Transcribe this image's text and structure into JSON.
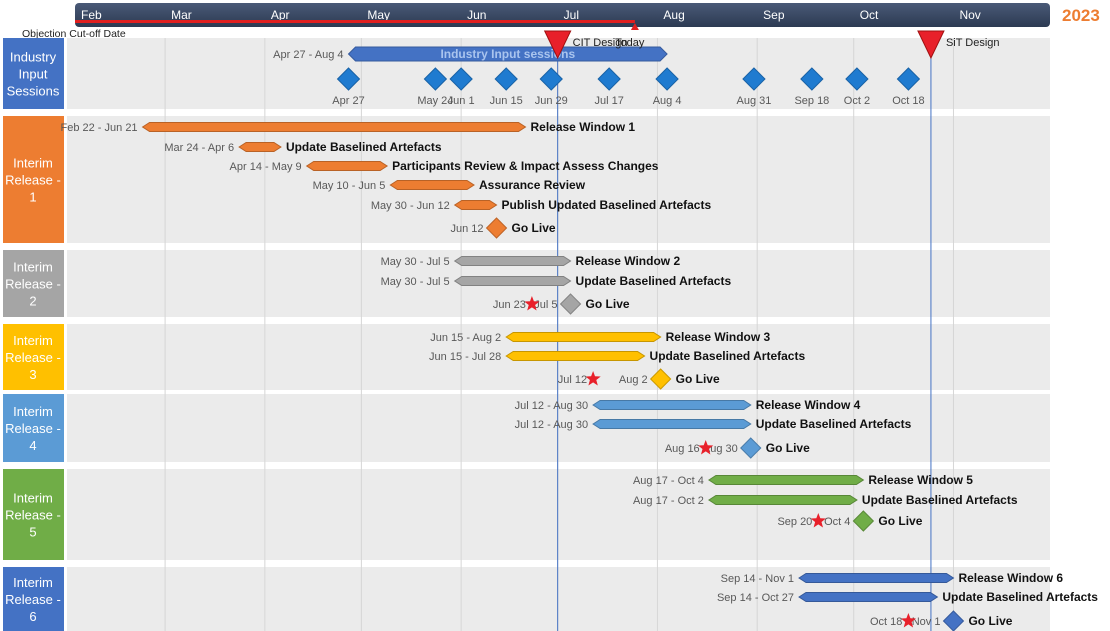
{
  "chart_data": {
    "type": "gantt",
    "year": "2023",
    "months": [
      "Feb",
      "Mar",
      "Apr",
      "May",
      "Jun",
      "Jul",
      "Aug",
      "Sep",
      "Oct",
      "Nov"
    ],
    "x_range": [
      "2023-02-01",
      "2023-11-30"
    ],
    "today_label": "Today",
    "today_date": "2023-07-12",
    "objection_label": "Objection Cut-off Date",
    "objection_range": [
      "2023-02-01",
      "2023-07-25"
    ],
    "milestones": [
      {
        "label": "CIT Design",
        "date": "2023-07-01"
      },
      {
        "label": "SiT Design",
        "date": "2023-10-25"
      }
    ],
    "sections": [
      {
        "name": "Industry\nInput\nSessions",
        "color": "#4472C4",
        "bars": [
          {
            "label": "Industry Input sessions",
            "range_label": "Apr 27 - Aug 4",
            "start": "2023-04-27",
            "end": "2023-08-04",
            "color": "#4472C4",
            "label_inside": true
          }
        ],
        "diamonds": [
          {
            "label": "Apr 27",
            "date": "2023-04-27"
          },
          {
            "label": "May 24",
            "date": "2023-05-24"
          },
          {
            "label": "Jun 1",
            "date": "2023-06-01"
          },
          {
            "label": "Jun 15",
            "date": "2023-06-15"
          },
          {
            "label": "Jun 29",
            "date": "2023-06-29"
          },
          {
            "label": "Jul 17",
            "date": "2023-07-17"
          },
          {
            "label": "Aug 4",
            "date": "2023-08-04"
          },
          {
            "label": "Aug 31",
            "date": "2023-08-31"
          },
          {
            "label": "Sep 18",
            "date": "2023-09-18"
          },
          {
            "label": "Oct 2",
            "date": "2023-10-02"
          },
          {
            "label": "Oct 18",
            "date": "2023-10-18"
          }
        ]
      },
      {
        "name": "Interim\nRelease -\n1",
        "color": "#ED7D31",
        "bars": [
          {
            "label": "Release Window 1",
            "range_label": "Feb 22 - Jun 21",
            "start": "2023-02-22",
            "end": "2023-06-21"
          },
          {
            "label": "Update Baselined Artefacts",
            "range_label": "Mar 24 - Apr 6",
            "start": "2023-03-24",
            "end": "2023-04-06"
          },
          {
            "label": "Participants Review & Impact Assess Changes",
            "range_label": "Apr 14 - May 9",
            "start": "2023-04-14",
            "end": "2023-05-09"
          },
          {
            "label": "Assurance Review",
            "range_label": "May 10 - Jun 5",
            "start": "2023-05-10",
            "end": "2023-06-05"
          },
          {
            "label": "Publish Updated Baselined Artefacts",
            "range_label": "May 30 - Jun 12",
            "start": "2023-05-30",
            "end": "2023-06-12"
          }
        ],
        "golive": {
          "label": "Go Live",
          "date_label": "Jun 12",
          "date": "2023-06-12"
        }
      },
      {
        "name": "Interim\nRelease -\n2",
        "color": "#A5A5A5",
        "bars": [
          {
            "label": "Release Window 2",
            "range_label": "May 30 - Jul 5",
            "start": "2023-05-30",
            "end": "2023-07-05"
          },
          {
            "label": "Update Baselined Artefacts",
            "range_label": "May 30 - Jul 5",
            "start": "2023-05-30",
            "end": "2023-07-05"
          }
        ],
        "golive": {
          "label": "Go Live",
          "date_label": "Jul 5",
          "date": "2023-07-05",
          "star_label": "Jun 23",
          "star_date": "2023-06-23"
        }
      },
      {
        "name": "Interim\nRelease -\n3",
        "color": "#FFC000",
        "bars": [
          {
            "label": "Release Window 3",
            "range_label": "Jun 15 - Aug 2",
            "start": "2023-06-15",
            "end": "2023-08-02"
          },
          {
            "label": "Update Baselined Artefacts",
            "range_label": "Jun 15 - Jul 28",
            "start": "2023-06-15",
            "end": "2023-07-28"
          }
        ],
        "golive": {
          "label": "Go Live",
          "date_label": "Aug 2",
          "date": "2023-08-02",
          "star_label": "Jul 12",
          "star_date": "2023-07-12"
        }
      },
      {
        "name": "Interim\nRelease -\n4",
        "color": "#5B9BD5",
        "bars": [
          {
            "label": "Release Window 4",
            "range_label": "Jul 12 - Aug 30",
            "start": "2023-07-12",
            "end": "2023-08-30"
          },
          {
            "label": "Update Baselined Artefacts",
            "range_label": "Jul 12 - Aug 30",
            "start": "2023-07-12",
            "end": "2023-08-30"
          }
        ],
        "golive": {
          "label": "Go Live",
          "date_label": "Aug 30",
          "date": "2023-08-30",
          "star_label": "Aug 16",
          "star_date": "2023-08-16"
        }
      },
      {
        "name": "Interim\nRelease -\n5",
        "color": "#70AD47",
        "bars": [
          {
            "label": "Release Window 5",
            "range_label": "Aug 17 - Oct 4",
            "start": "2023-08-17",
            "end": "2023-10-04"
          },
          {
            "label": "Update Baselined Artefacts",
            "range_label": "Aug 17 - Oct 2",
            "start": "2023-08-17",
            "end": "2023-10-02"
          }
        ],
        "golive": {
          "label": "Go Live",
          "date_label": "Oct 4",
          "date": "2023-10-04",
          "star_label": "Sep 20",
          "star_date": "2023-09-20"
        }
      },
      {
        "name": "Interim\nRelease -\n6",
        "color": "#4472C4",
        "bars": [
          {
            "label": "Release Window 6",
            "range_label": "Sep 14 - Nov 1",
            "start": "2023-09-14",
            "end": "2023-11-01"
          },
          {
            "label": "Update Baselined Artefacts",
            "range_label": "Sep 14 - Oct 27",
            "start": "2023-09-14",
            "end": "2023-10-27"
          }
        ],
        "golive": {
          "label": "Go Live",
          "date_label": "Nov 1",
          "date": "2023-11-01",
          "star_label": "Oct 18",
          "star_date": "2023-10-18"
        }
      }
    ]
  }
}
